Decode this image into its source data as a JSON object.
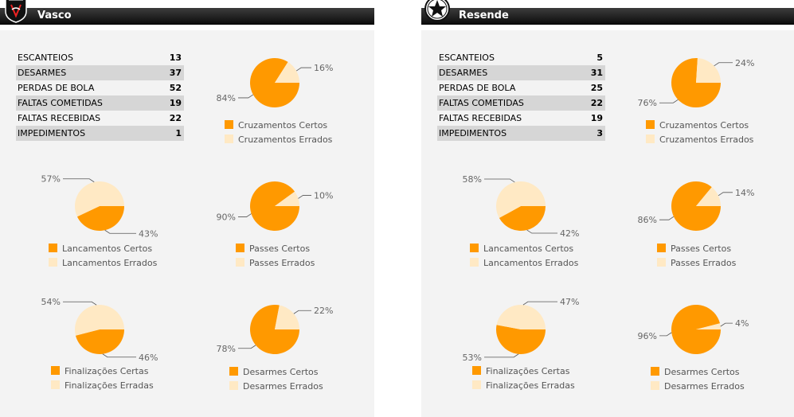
{
  "colors": {
    "certos": "#ff9900",
    "errados": "#ffe9c4",
    "leader": "#555555",
    "pct_text": "#666666",
    "legend_text": "#555555"
  },
  "teams": [
    {
      "name": "Vasco",
      "crest_icon": "vasco-crest-icon",
      "stats": [
        {
          "label": "ESCANTEIOS",
          "value": "13"
        },
        {
          "label": "DESARMES",
          "value": "37"
        },
        {
          "label": "PERDAS DE BOLA",
          "value": "52"
        },
        {
          "label": "FALTAS COMETIDAS",
          "value": "19"
        },
        {
          "label": "FALTAS RECEBIDAS",
          "value": "22"
        },
        {
          "label": "IMPEDIMENTOS",
          "value": "1"
        }
      ]
    },
    {
      "name": "Resende",
      "crest_icon": "resende-crest-icon",
      "stats": [
        {
          "label": "ESCANTEIOS",
          "value": "5"
        },
        {
          "label": "DESARMES",
          "value": "31"
        },
        {
          "label": "PERDAS DE BOLA",
          "value": "25"
        },
        {
          "label": "FALTAS COMETIDAS",
          "value": "22"
        },
        {
          "label": "FALTAS RECEBIDAS",
          "value": "19"
        },
        {
          "label": "IMPEDIMENTOS",
          "value": "3"
        }
      ]
    }
  ],
  "chart_data": [
    {
      "type": "pie",
      "team": "Vasco",
      "labels": [
        "Cruzamentos Certos",
        "Cruzamentos Errados"
      ],
      "values": [
        84,
        16
      ]
    },
    {
      "type": "pie",
      "team": "Vasco",
      "labels": [
        "Lancamentos Certos",
        "Lancamentos Errados"
      ],
      "values": [
        43,
        57
      ]
    },
    {
      "type": "pie",
      "team": "Vasco",
      "labels": [
        "Passes Certos",
        "Passes Errados"
      ],
      "values": [
        90,
        10
      ]
    },
    {
      "type": "pie",
      "team": "Vasco",
      "labels": [
        "Finalizações Certas",
        "Finalizações Erradas"
      ],
      "values": [
        46,
        54
      ]
    },
    {
      "type": "pie",
      "team": "Vasco",
      "labels": [
        "Desarmes Certos",
        "Desarmes Errados"
      ],
      "values": [
        78,
        22
      ]
    },
    {
      "type": "pie",
      "team": "Resende",
      "labels": [
        "Cruzamentos Certos",
        "Cruzamentos Errados"
      ],
      "values": [
        76,
        24
      ]
    },
    {
      "type": "pie",
      "team": "Resende",
      "labels": [
        "Lancamentos Certos",
        "Lancamentos Errados"
      ],
      "values": [
        42,
        58
      ]
    },
    {
      "type": "pie",
      "team": "Resende",
      "labels": [
        "Passes Certos",
        "Passes Errados"
      ],
      "values": [
        86,
        14
      ]
    },
    {
      "type": "pie",
      "team": "Resende",
      "labels": [
        "Finalizações Certas",
        "Finalizações Erradas"
      ],
      "values": [
        53,
        47
      ]
    },
    {
      "type": "pie",
      "team": "Resende",
      "labels": [
        "Desarmes Certos",
        "Desarmes Errados"
      ],
      "values": [
        96,
        4
      ]
    }
  ]
}
